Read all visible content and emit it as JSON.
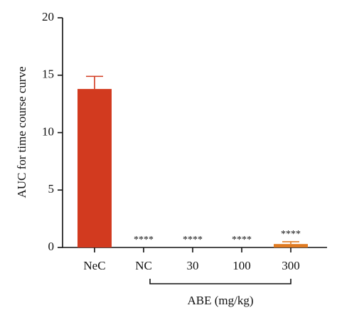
{
  "chart_data": {
    "type": "bar",
    "y_label": "AUC for time course curve",
    "categories": [
      "NeC",
      "NC",
      "30",
      "100",
      "300"
    ],
    "values": [
      13.8,
      0,
      0,
      0,
      0.3
    ],
    "errors": [
      1.1,
      0,
      0,
      0,
      0.2
    ],
    "colors": [
      "#d23a1f",
      "#d23a1f",
      "#d23a1f",
      "#d23a1f",
      "#e07b22"
    ],
    "annotations": [
      null,
      "****",
      "****",
      "****",
      "****"
    ],
    "group_label": "ABE (mg/kg)",
    "ylim": [
      0,
      20
    ],
    "yticks": [
      0,
      5,
      10,
      15,
      20
    ],
    "grid": false
  }
}
